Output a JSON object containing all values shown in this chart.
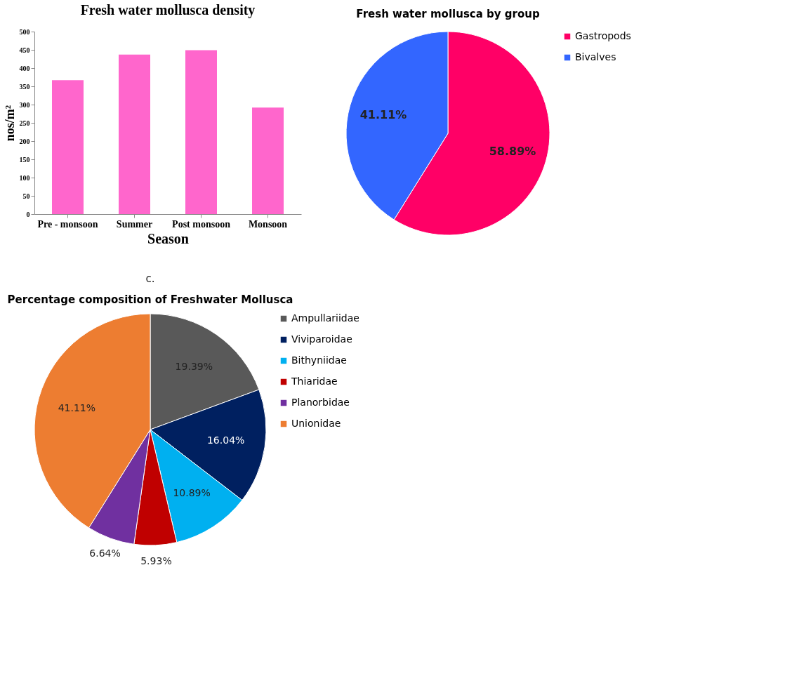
{
  "chart_data": [
    {
      "type": "bar",
      "title": "Fresh water mollusca density",
      "xlabel": "Season",
      "ylabel": "nos/m²",
      "categories": [
        "Pre - monsoon",
        "Summer",
        "Post monsoon",
        "Monsoon"
      ],
      "values": [
        367,
        437,
        449,
        292
      ],
      "color": "#ff66cc",
      "ylim": [
        0,
        500
      ],
      "yticks": [
        0,
        50,
        100,
        150,
        200,
        250,
        300,
        350,
        400,
        450,
        500
      ],
      "grid": false
    },
    {
      "type": "pie",
      "title": "Fresh water mollusca by group",
      "categories": [
        "Gastropods",
        "Bivalves"
      ],
      "values": [
        58.89,
        41.11
      ],
      "colors": [
        "#ff0066",
        "#3366ff"
      ],
      "value_labels": [
        "58.89%",
        "41.11%"
      ],
      "legend": "right"
    },
    {
      "type": "pie",
      "title": "Percentage composition of Freshwater Mollusca",
      "annotations": [
        "c."
      ],
      "categories": [
        "Ampullariidae",
        "Viviparoidae",
        "Bithyniidae",
        "Thiaridae",
        "Planorbidae",
        "Unionidae"
      ],
      "values": [
        19.39,
        16.04,
        10.89,
        5.93,
        6.64,
        41.11
      ],
      "colors": [
        "#595959",
        "#002060",
        "#00b0f0",
        "#c00000",
        "#7030a0",
        "#ed7d31"
      ],
      "value_labels": [
        "19.39%",
        "16.04%",
        "10.89%",
        "5.93%",
        "6.64%",
        "41.11%"
      ],
      "legend": "right"
    }
  ]
}
